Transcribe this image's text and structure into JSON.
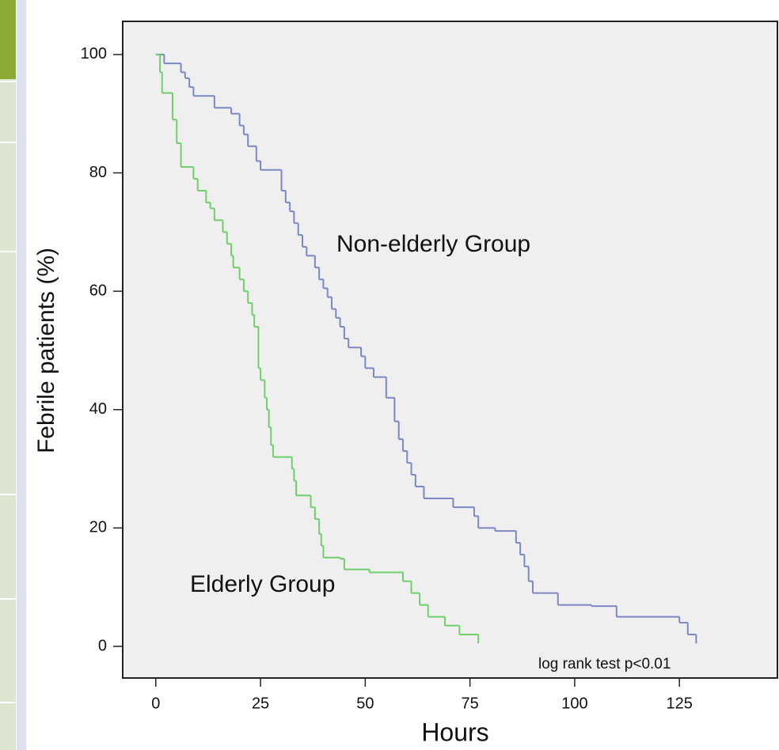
{
  "chart_data": {
    "type": "step",
    "x_label": "Hours",
    "y_label": "Febrile patients (%)",
    "xlim": [
      -7.9,
      148.4
    ],
    "ylim": [
      -5.35,
      105.6
    ],
    "xticks": [
      0,
      25,
      50,
      75,
      100,
      125
    ],
    "yticks": [
      0,
      20,
      40,
      60,
      80,
      100
    ],
    "annotations": [
      "Non-elderly Group",
      "Elderly Group",
      "log rank test p<0.01"
    ],
    "series": [
      {
        "name": "Non-elderly Group",
        "color": "#7b88c4",
        "x": [
          0,
          2,
          6,
          7,
          8,
          9,
          14,
          18,
          20,
          21,
          22,
          24,
          25,
          30,
          31,
          32,
          33,
          34,
          35,
          36,
          38,
          39,
          40,
          41,
          42,
          43,
          44,
          45,
          46,
          49,
          50,
          52,
          55,
          57,
          58,
          59,
          60,
          61,
          62,
          64,
          71,
          76,
          77,
          81,
          86,
          87,
          88,
          89,
          90,
          96,
          104,
          110,
          125,
          127,
          129
        ],
        "values": [
          100,
          98.5,
          97,
          96,
          94.5,
          93,
          91,
          90,
          88,
          86.5,
          84.5,
          82,
          80.5,
          77,
          75,
          73.5,
          71.5,
          69.5,
          67.5,
          66,
          64,
          62,
          60.5,
          59,
          57,
          55.5,
          54,
          52,
          50.5,
          49,
          47,
          45.5,
          42,
          38,
          35,
          33,
          31,
          29,
          27,
          25,
          23.5,
          22,
          20,
          19.5,
          17.5,
          15.5,
          13.5,
          11,
          9,
          7,
          6.8,
          5,
          4,
          2,
          0.5
        ]
      },
      {
        "name": "Elderly Group",
        "color": "#6fcf6a",
        "x": [
          0,
          1,
          1.5,
          4,
          5,
          6,
          9,
          10,
          12,
          13,
          14,
          16,
          17,
          18,
          18.5,
          20,
          21,
          22,
          23,
          23.5,
          24.5,
          25,
          26,
          26.5,
          27,
          27.5,
          28,
          32.5,
          33,
          33.5,
          37,
          38,
          39,
          39.5,
          40,
          44,
          45,
          51,
          59,
          61,
          63,
          65,
          69,
          72.5,
          77
        ],
        "values": [
          100,
          97,
          93.5,
          89,
          85,
          81,
          79,
          77,
          75,
          74,
          72,
          70,
          68,
          66,
          64,
          62,
          60,
          58,
          56,
          54,
          47,
          45,
          42,
          40,
          37,
          34,
          32,
          30,
          28,
          25.5,
          23.5,
          21.5,
          19,
          17,
          15,
          14.8,
          13,
          12.5,
          11,
          9,
          7,
          5,
          3.5,
          2,
          0.5
        ]
      }
    ]
  }
}
